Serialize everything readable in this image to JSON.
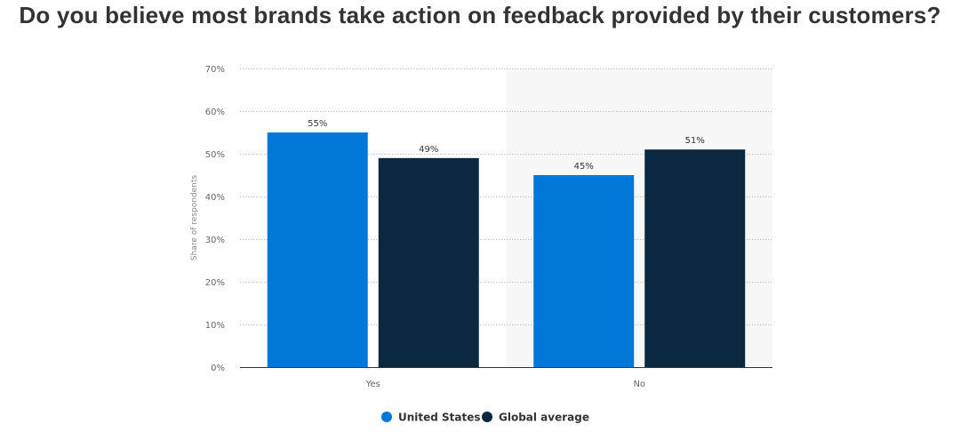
{
  "title": "Do you believe most brands take action on feedback provided by their customers?",
  "chart_data": {
    "type": "bar",
    "categories": [
      "Yes",
      "No"
    ],
    "series": [
      {
        "name": "United States",
        "values": [
          55,
          45
        ],
        "color": "#0178d8"
      },
      {
        "name": "Global average",
        "values": [
          49,
          51
        ],
        "color": "#0a2840"
      }
    ],
    "value_suffix": "%",
    "xlabel": "",
    "ylabel": "Share of respondents",
    "ylim": [
      0,
      70
    ],
    "yticks": [
      0,
      10,
      20,
      30,
      40,
      50,
      60,
      70
    ],
    "ytick_labels": [
      "0%",
      "10%",
      "20%",
      "30%",
      "40%",
      "50%",
      "60%",
      "70%"
    ],
    "grid": true,
    "highlight_category": "No",
    "highlight_color": "#f7f7f7",
    "legend_position": "bottom-center"
  }
}
